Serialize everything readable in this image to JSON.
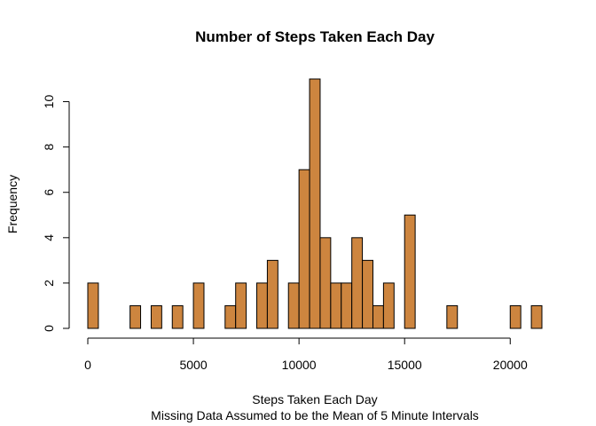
{
  "chart_data": {
    "type": "bar",
    "title": "Number of Steps Taken Each Day",
    "xlabel": "Steps Taken Each Day",
    "subtitle": "Missing Data Assumed to be the Mean of 5 Minute Intervals",
    "ylabel": "Frequency",
    "bin_width": 500,
    "x": [
      0,
      500,
      1000,
      1500,
      2000,
      2500,
      3000,
      3500,
      4000,
      4500,
      5000,
      5500,
      6000,
      6500,
      7000,
      7500,
      8000,
      8500,
      9000,
      9500,
      10000,
      10500,
      11000,
      11500,
      12000,
      12500,
      13000,
      13500,
      14000,
      14500,
      15000,
      15500,
      16000,
      16500,
      17000,
      17500,
      18000,
      18500,
      19000,
      19500,
      20000,
      20500,
      21000
    ],
    "values": [
      2,
      0,
      0,
      0,
      1,
      0,
      1,
      0,
      1,
      0,
      2,
      0,
      0,
      1,
      2,
      0,
      2,
      3,
      0,
      2,
      7,
      11,
      4,
      2,
      2,
      4,
      3,
      1,
      2,
      0,
      5,
      0,
      0,
      0,
      1,
      0,
      0,
      0,
      0,
      0,
      1,
      0,
      1
    ],
    "xlim": [
      0,
      21500
    ],
    "ylim": [
      0,
      11
    ],
    "xticks": [
      "0",
      "5000",
      "10000",
      "15000",
      "20000"
    ],
    "yticks": [
      "0",
      "2",
      "4",
      "6",
      "8",
      "10"
    ],
    "bar_color": "#CD853F",
    "edge_color": "#000000",
    "grid": false,
    "legend": "none"
  }
}
